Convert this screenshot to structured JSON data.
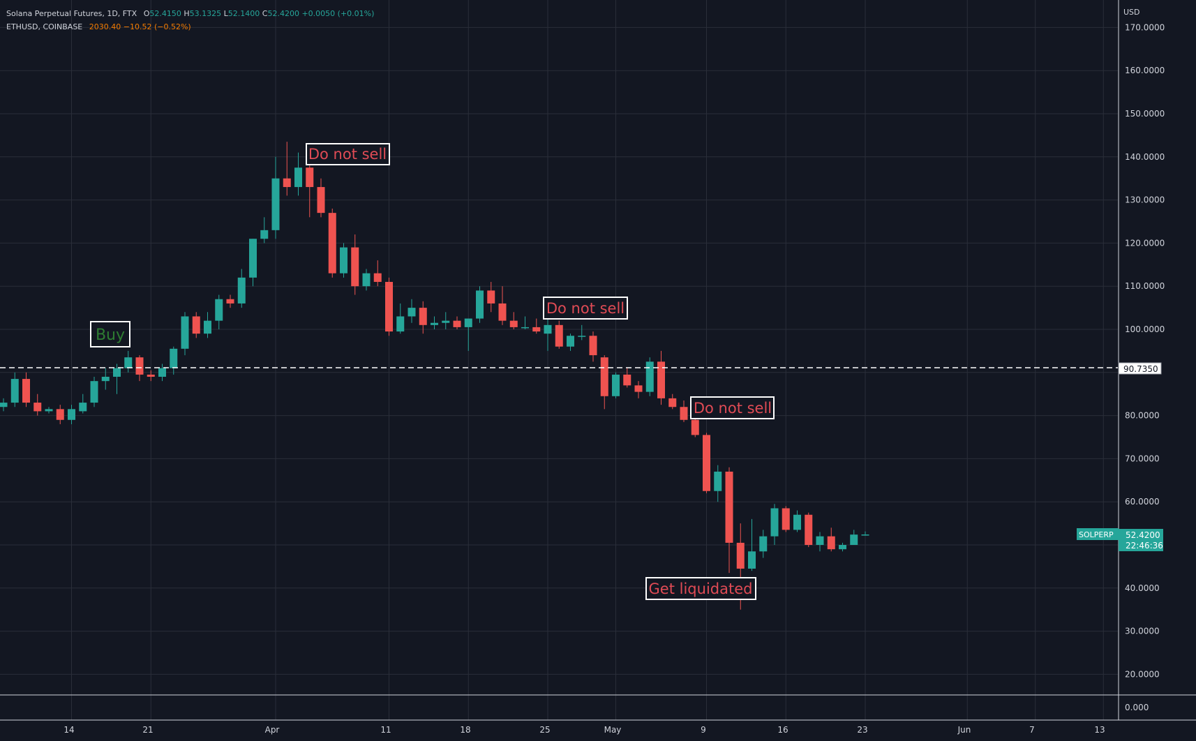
{
  "legend": {
    "line1": {
      "symbol": "Solana Perpetual Futures, 1D, FTX",
      "o_label": "O",
      "o_value": "52.4150",
      "h_label": "H",
      "h_value": "53.1325",
      "l_label": "L",
      "l_value": "52.1400",
      "c_label": "C",
      "c_value": "52.4200",
      "change": "+0.0050 (+0.01%)"
    },
    "line2": {
      "symbol": "ETHUSD, COINBASE",
      "price": "2030.40",
      "change": "−10.52 (−0.52%)"
    }
  },
  "colors": {
    "background": "#131722",
    "grid": "#2a2e39",
    "up": "#26a69a",
    "down": "#ef5350",
    "text": "#d1d4dc",
    "buy_text": "#2e7d32",
    "sell_text": "#e04b55"
  },
  "price_axis": {
    "currency": "USD",
    "ticks": [
      "170.0000",
      "160.0000",
      "150.0000",
      "140.0000",
      "130.0000",
      "120.0000",
      "110.0000",
      "100.0000",
      "80.0000",
      "70.0000",
      "60.0000",
      "40.0000",
      "30.0000",
      "20.0000"
    ],
    "volume_tick": "0.000",
    "hline_label": "90.7350",
    "symbol_tag": "SOLPERP",
    "last_price": "52.4200",
    "countdown": "22:46:36"
  },
  "time_axis": {
    "labels": [
      "14",
      "21",
      "Apr",
      "11",
      "18",
      "25",
      "May",
      "9",
      "16",
      "23",
      "Jun",
      "7",
      "13"
    ]
  },
  "annotations": {
    "buy": "Buy",
    "do_not_sell_1": "Do not sell",
    "do_not_sell_2": "Do not sell",
    "do_not_sell_3": "Do not sell",
    "get_liquidated": "Get liquidated"
  },
  "chart_data": {
    "type": "candlestick",
    "interval": "1D",
    "ylim": [
      0,
      175
    ],
    "horizontal_line": 90.735,
    "grid": true,
    "last_close": 52.42,
    "candles": [
      {
        "date": "2022-03-08",
        "o": 82.0,
        "h": 84.0,
        "l": 81.0,
        "c": 83.0
      },
      {
        "date": "2022-03-09",
        "o": 83.0,
        "h": 90.0,
        "l": 82.0,
        "c": 88.5
      },
      {
        "date": "2022-03-10",
        "o": 88.5,
        "h": 90.0,
        "l": 82.0,
        "c": 83.0
      },
      {
        "date": "2022-03-11",
        "o": 83.0,
        "h": 85.0,
        "l": 80.0,
        "c": 81.0
      },
      {
        "date": "2022-03-12",
        "o": 81.0,
        "h": 82.0,
        "l": 80.5,
        "c": 81.5
      },
      {
        "date": "2022-03-13",
        "o": 81.5,
        "h": 82.5,
        "l": 78.0,
        "c": 79.0
      },
      {
        "date": "2022-03-14",
        "o": 79.0,
        "h": 82.5,
        "l": 78.0,
        "c": 81.5
      },
      {
        "date": "2022-03-15",
        "o": 81.0,
        "h": 85.0,
        "l": 80.5,
        "c": 83.0
      },
      {
        "date": "2022-03-16",
        "o": 83.0,
        "h": 89.0,
        "l": 82.0,
        "c": 88.0
      },
      {
        "date": "2022-03-17",
        "o": 88.0,
        "h": 91.0,
        "l": 86.0,
        "c": 89.0
      },
      {
        "date": "2022-03-18",
        "o": 89.0,
        "h": 92.0,
        "l": 85.0,
        "c": 91.0
      },
      {
        "date": "2022-03-19",
        "o": 91.0,
        "h": 95.0,
        "l": 90.0,
        "c": 93.5
      },
      {
        "date": "2022-03-20",
        "o": 93.5,
        "h": 94.0,
        "l": 88.0,
        "c": 89.5
      },
      {
        "date": "2022-03-21",
        "o": 89.5,
        "h": 90.5,
        "l": 88.0,
        "c": 89.0
      },
      {
        "date": "2022-03-22",
        "o": 89.0,
        "h": 92.0,
        "l": 88.0,
        "c": 91.0
      },
      {
        "date": "2022-03-23",
        "o": 91.0,
        "h": 96.0,
        "l": 89.5,
        "c": 95.5
      },
      {
        "date": "2022-03-24",
        "o": 95.5,
        "h": 104.0,
        "l": 94.0,
        "c": 103.0
      },
      {
        "date": "2022-03-25",
        "o": 103.0,
        "h": 104.0,
        "l": 98.0,
        "c": 99.0
      },
      {
        "date": "2022-03-26",
        "o": 99.0,
        "h": 104.0,
        "l": 98.0,
        "c": 102.0
      },
      {
        "date": "2022-03-27",
        "o": 102.0,
        "h": 108.0,
        "l": 100.0,
        "c": 107.0
      },
      {
        "date": "2022-03-28",
        "o": 107.0,
        "h": 108.0,
        "l": 105.0,
        "c": 106.0
      },
      {
        "date": "2022-03-29",
        "o": 106.0,
        "h": 114.0,
        "l": 105.0,
        "c": 112.0
      },
      {
        "date": "2022-03-30",
        "o": 112.0,
        "h": 121.0,
        "l": 110.0,
        "c": 121.0
      },
      {
        "date": "2022-03-31",
        "o": 121.0,
        "h": 126.0,
        "l": 120.0,
        "c": 123.0
      },
      {
        "date": "2022-04-01",
        "o": 123.0,
        "h": 140.0,
        "l": 121.0,
        "c": 135.0
      },
      {
        "date": "2022-04-02",
        "o": 135.0,
        "h": 143.5,
        "l": 131.0,
        "c": 133.0
      },
      {
        "date": "2022-04-03",
        "o": 133.0,
        "h": 141.0,
        "l": 131.0,
        "c": 137.5
      },
      {
        "date": "2022-04-04",
        "o": 137.5,
        "h": 138.0,
        "l": 126.0,
        "c": 133.0
      },
      {
        "date": "2022-04-05",
        "o": 133.0,
        "h": 135.0,
        "l": 126.0,
        "c": 127.0
      },
      {
        "date": "2022-04-06",
        "o": 127.0,
        "h": 128.0,
        "l": 112.0,
        "c": 113.0
      },
      {
        "date": "2022-04-07",
        "o": 113.0,
        "h": 120.0,
        "l": 112.0,
        "c": 119.0
      },
      {
        "date": "2022-04-08",
        "o": 119.0,
        "h": 122.0,
        "l": 108.0,
        "c": 110.0
      },
      {
        "date": "2022-04-09",
        "o": 110.0,
        "h": 114.0,
        "l": 109.0,
        "c": 113.0
      },
      {
        "date": "2022-04-10",
        "o": 113.0,
        "h": 116.0,
        "l": 110.0,
        "c": 111.0
      },
      {
        "date": "2022-04-11",
        "o": 111.0,
        "h": 112.0,
        "l": 98.5,
        "c": 99.5
      },
      {
        "date": "2022-04-12",
        "o": 99.5,
        "h": 106.0,
        "l": 99.0,
        "c": 103.0
      },
      {
        "date": "2022-04-13",
        "o": 103.0,
        "h": 107.0,
        "l": 101.5,
        "c": 105.0
      },
      {
        "date": "2022-04-14",
        "o": 105.0,
        "h": 106.5,
        "l": 99.0,
        "c": 101.0
      },
      {
        "date": "2022-04-15",
        "o": 101.0,
        "h": 103.0,
        "l": 100.0,
        "c": 101.5
      },
      {
        "date": "2022-04-16",
        "o": 101.5,
        "h": 104.0,
        "l": 100.0,
        "c": 102.0
      },
      {
        "date": "2022-04-17",
        "o": 102.0,
        "h": 103.0,
        "l": 100.0,
        "c": 100.5
      },
      {
        "date": "2022-04-18",
        "o": 100.5,
        "h": 102.5,
        "l": 95.0,
        "c": 102.5
      },
      {
        "date": "2022-04-19",
        "o": 102.5,
        "h": 110.0,
        "l": 101.5,
        "c": 109.0
      },
      {
        "date": "2022-04-20",
        "o": 109.0,
        "h": 111.0,
        "l": 104.0,
        "c": 106.0
      },
      {
        "date": "2022-04-21",
        "o": 106.0,
        "h": 110.0,
        "l": 101.0,
        "c": 102.0
      },
      {
        "date": "2022-04-22",
        "o": 102.0,
        "h": 104.0,
        "l": 100.0,
        "c": 100.5
      },
      {
        "date": "2022-04-23",
        "o": 100.5,
        "h": 103.0,
        "l": 100.0,
        "c": 100.5
      },
      {
        "date": "2022-04-24",
        "o": 100.5,
        "h": 102.5,
        "l": 99.0,
        "c": 99.5
      },
      {
        "date": "2022-04-25",
        "o": 99.0,
        "h": 103.0,
        "l": 95.0,
        "c": 101.0
      },
      {
        "date": "2022-04-26",
        "o": 101.0,
        "h": 102.0,
        "l": 95.5,
        "c": 96.0
      },
      {
        "date": "2022-04-27",
        "o": 96.0,
        "h": 99.0,
        "l": 95.0,
        "c": 98.5
      },
      {
        "date": "2022-04-28",
        "o": 98.5,
        "h": 101.0,
        "l": 97.5,
        "c": 98.5
      },
      {
        "date": "2022-04-29",
        "o": 98.5,
        "h": 99.5,
        "l": 92.5,
        "c": 94.0
      },
      {
        "date": "2022-04-30",
        "o": 93.5,
        "h": 94.0,
        "l": 81.5,
        "c": 84.5
      },
      {
        "date": "2022-05-01",
        "o": 84.5,
        "h": 90.0,
        "l": 84.0,
        "c": 89.5
      },
      {
        "date": "2022-05-02",
        "o": 89.5,
        "h": 91.0,
        "l": 86.5,
        "c": 87.0
      },
      {
        "date": "2022-05-03",
        "o": 87.0,
        "h": 88.0,
        "l": 84.0,
        "c": 85.5
      },
      {
        "date": "2022-05-04",
        "o": 85.5,
        "h": 93.5,
        "l": 84.5,
        "c": 92.5
      },
      {
        "date": "2022-05-05",
        "o": 92.5,
        "h": 95.0,
        "l": 82.5,
        "c": 84.0
      },
      {
        "date": "2022-05-06",
        "o": 84.0,
        "h": 85.0,
        "l": 81.5,
        "c": 82.0
      },
      {
        "date": "2022-05-07",
        "o": 82.0,
        "h": 83.5,
        "l": 78.5,
        "c": 79.0
      },
      {
        "date": "2022-05-08",
        "o": 79.0,
        "h": 80.0,
        "l": 75.0,
        "c": 75.5
      },
      {
        "date": "2022-05-09",
        "o": 75.5,
        "h": 76.0,
        "l": 62.0,
        "c": 62.5
      },
      {
        "date": "2022-05-10",
        "o": 62.5,
        "h": 68.5,
        "l": 60.0,
        "c": 67.0
      },
      {
        "date": "2022-05-11",
        "o": 67.0,
        "h": 68.0,
        "l": 43.5,
        "c": 50.5
      },
      {
        "date": "2022-05-12",
        "o": 50.5,
        "h": 55.0,
        "l": 35.0,
        "c": 44.5
      },
      {
        "date": "2022-05-13",
        "o": 44.5,
        "h": 56.0,
        "l": 44.0,
        "c": 48.5
      },
      {
        "date": "2022-05-14",
        "o": 48.5,
        "h": 53.5,
        "l": 47.0,
        "c": 52.0
      },
      {
        "date": "2022-05-15",
        "o": 52.0,
        "h": 59.5,
        "l": 50.0,
        "c": 58.5
      },
      {
        "date": "2022-05-16",
        "o": 58.5,
        "h": 59.0,
        "l": 53.0,
        "c": 53.5
      },
      {
        "date": "2022-05-17",
        "o": 53.5,
        "h": 58.0,
        "l": 53.0,
        "c": 57.0
      },
      {
        "date": "2022-05-18",
        "o": 57.0,
        "h": 57.5,
        "l": 49.5,
        "c": 50.0
      },
      {
        "date": "2022-05-19",
        "o": 50.0,
        "h": 53.0,
        "l": 48.5,
        "c": 52.0
      },
      {
        "date": "2022-05-20",
        "o": 52.0,
        "h": 54.0,
        "l": 48.5,
        "c": 49.0
      },
      {
        "date": "2022-05-21",
        "o": 49.0,
        "h": 50.5,
        "l": 48.5,
        "c": 50.0
      },
      {
        "date": "2022-05-22",
        "o": 50.0,
        "h": 53.5,
        "l": 50.0,
        "c": 52.4
      },
      {
        "date": "2022-05-23",
        "o": 52.415,
        "h": 53.1325,
        "l": 52.14,
        "c": 52.42
      }
    ]
  }
}
